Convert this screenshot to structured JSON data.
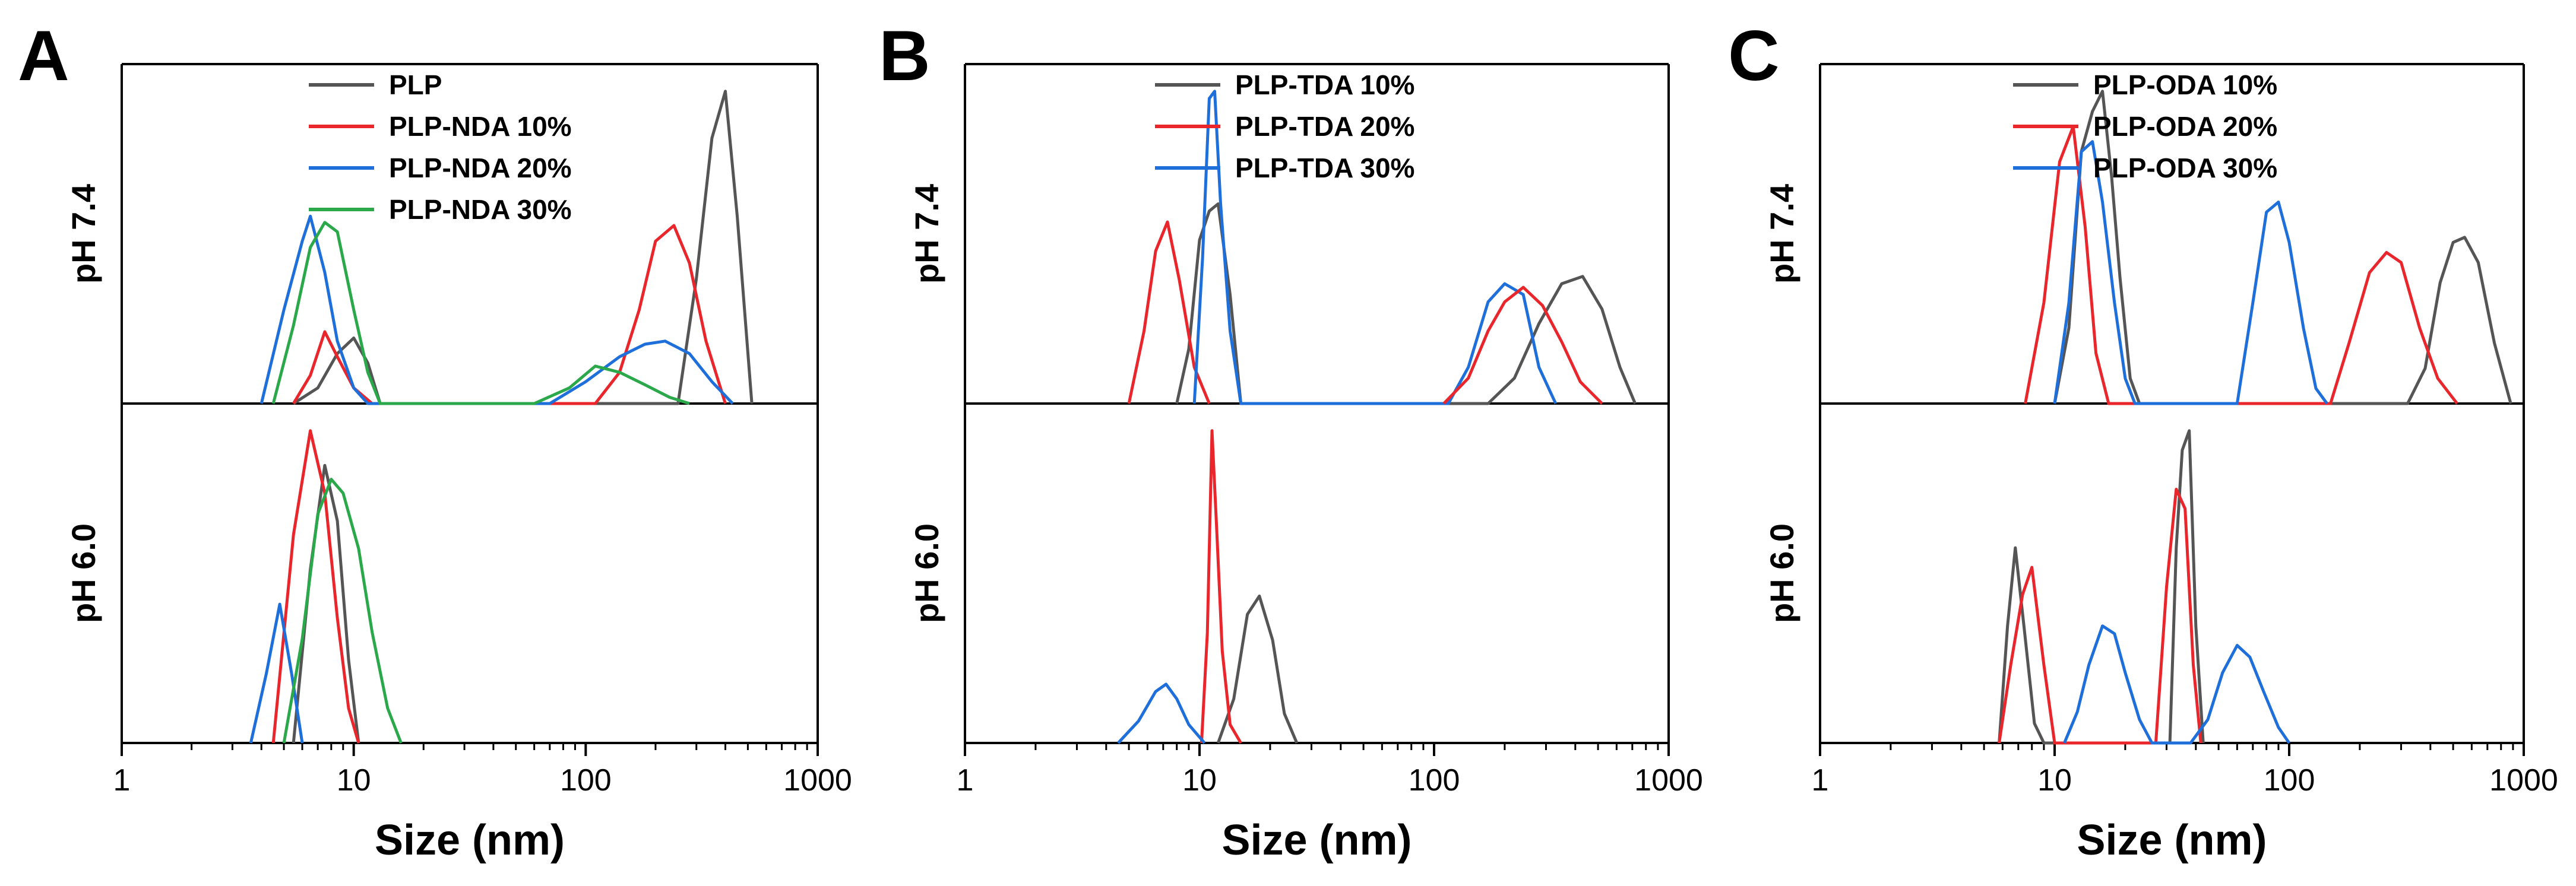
{
  "chart_data": [
    {
      "type": "line",
      "panel": "A",
      "xlabel": "Size (nm)",
      "xscale": "log",
      "xlim": [
        1,
        1000
      ],
      "xticks": [
        "1",
        "10",
        "100",
        "1000"
      ],
      "legend_position": "top-center",
      "rows": [
        {
          "label": "pH 7.4",
          "series": [
            {
              "name": "PLP",
              "color": "#555555",
              "x": [
                5.5,
                7,
                8.5,
                10,
                11.5,
                13,
                250,
                300,
                350,
                400,
                450,
                520
              ],
              "y": [
                0,
                0.05,
                0.16,
                0.21,
                0.13,
                0,
                0,
                0.4,
                0.85,
                1.0,
                0.6,
                0
              ]
            },
            {
              "name": "PLP-NDA 10%",
              "color": "#e8262b",
              "x": [
                5.5,
                6.5,
                7.5,
                8.5,
                10,
                12,
                110,
                140,
                170,
                200,
                240,
                280,
                330,
                400
              ],
              "y": [
                0,
                0.09,
                0.23,
                0.15,
                0.05,
                0,
                0,
                0.1,
                0.3,
                0.52,
                0.57,
                0.45,
                0.2,
                0
              ]
            },
            {
              "name": "PLP-NDA 20%",
              "color": "#1f6fdb",
              "x": [
                4,
                5,
                6,
                6.5,
                7.5,
                8.5,
                10,
                11.5,
                70,
                100,
                140,
                180,
                220,
                280,
                350,
                430
              ],
              "y": [
                0,
                0.3,
                0.52,
                0.6,
                0.42,
                0.2,
                0.05,
                0,
                0,
                0.07,
                0.15,
                0.19,
                0.2,
                0.16,
                0.07,
                0
              ]
            },
            {
              "name": "PLP-NDA 30%",
              "color": "#2aa84a",
              "x": [
                4.5,
                5.5,
                6.5,
                7.5,
                8.5,
                10,
                11.5,
                13,
                60,
                85,
                110,
                140,
                180,
                230,
                280
              ],
              "y": [
                0,
                0.25,
                0.5,
                0.58,
                0.55,
                0.3,
                0.1,
                0,
                0,
                0.05,
                0.12,
                0.1,
                0.06,
                0.02,
                0
              ]
            }
          ]
        },
        {
          "label": "pH 6.0",
          "series": [
            {
              "name": "PLP",
              "color": "#555555",
              "x": [
                5.5,
                6.5,
                7.5,
                8.5,
                9.5,
                10.5
              ],
              "y": [
                0,
                0.25,
                0.4,
                0.32,
                0.12,
                0
              ]
            },
            {
              "name": "PLP-NDA 10%",
              "color": "#e8262b",
              "x": [
                4.5,
                5.5,
                6.5,
                7.5,
                8.5,
                9.5,
                10.5
              ],
              "y": [
                0,
                0.3,
                0.45,
                0.36,
                0.18,
                0.05,
                0
              ]
            },
            {
              "name": "PLP-NDA 20%",
              "color": "#1f6fdb",
              "x": [
                3.6,
                4.2,
                4.8,
                5.4,
                6
              ],
              "y": [
                0,
                0.1,
                0.2,
                0.1,
                0
              ]
            },
            {
              "name": "PLP-NDA 30%",
              "color": "#2aa84a",
              "x": [
                5,
                6,
                7,
                8,
                9,
                10.5,
                12,
                14,
                16
              ],
              "y": [
                0,
                0.15,
                0.33,
                0.38,
                0.36,
                0.28,
                0.16,
                0.05,
                0
              ]
            }
          ]
        }
      ]
    },
    {
      "type": "line",
      "panel": "B",
      "xlabel": "Size (nm)",
      "xscale": "log",
      "xlim": [
        1,
        1000
      ],
      "xticks": [
        "1",
        "10",
        "100",
        "1000"
      ],
      "legend_position": "top-center",
      "rows": [
        {
          "label": "pH 7.4",
          "series": [
            {
              "name": "PLP-TDA 10%",
              "color": "#555555",
              "x": [
                8,
                9,
                10,
                11,
                12,
                13.5,
                15,
                170,
                220,
                280,
                350,
                430,
                520,
                620,
                720
              ],
              "y": [
                0,
                0.15,
                0.45,
                0.53,
                0.55,
                0.3,
                0,
                0,
                0.07,
                0.22,
                0.33,
                0.35,
                0.26,
                0.1,
                0
              ]
            },
            {
              "name": "PLP-TDA 20%",
              "color": "#e8262b",
              "x": [
                5,
                5.8,
                6.5,
                7.3,
                8.2,
                9.5,
                11
              ],
              "y": [
                0,
                0.2,
                0.42,
                0.5,
                0.34,
                0.1,
                0
              ]
            },
            {
              "name": "PLP-TDA 30%",
              "color": "#1f6fdb",
              "x": [
                9.5,
                10.3,
                11,
                11.6,
                12.3,
                13.5,
                15,
                115,
                140,
                170,
                200,
                240,
                280,
                330
              ],
              "y": [
                0,
                0.4,
                0.84,
                0.86,
                0.55,
                0.2,
                0,
                0,
                0.1,
                0.28,
                0.33,
                0.3,
                0.1,
                0
              ]
            },
            {
              "name": "PLP-TDA 20%",
              "color": "#e8262b",
              "x": [
                110,
                140,
                170,
                200,
                240,
                290,
                350,
                420,
                520
              ],
              "y": [
                0,
                0.07,
                0.2,
                0.28,
                0.32,
                0.27,
                0.17,
                0.06,
                0
              ]
            }
          ]
        },
        {
          "label": "pH 6.0",
          "series": [
            {
              "name": "PLP-TDA 10%",
              "color": "#555555",
              "x": [
                12,
                14,
                16,
                18,
                20.5,
                23,
                26
              ],
              "y": [
                0,
                0.12,
                0.35,
                0.4,
                0.28,
                0.08,
                0
              ]
            },
            {
              "name": "PLP-TDA 20%",
              "color": "#e8262b",
              "x": [
                10.2,
                10.8,
                11.3,
                11.8,
                12.5,
                13.5,
                15
              ],
              "y": [
                0,
                0.3,
                0.85,
                0.6,
                0.25,
                0.05,
                0
              ]
            },
            {
              "name": "PLP-TDA 30%",
              "color": "#1f6fdb",
              "x": [
                4.5,
                5.5,
                6.5,
                7.2,
                8,
                9,
                10.5
              ],
              "y": [
                0,
                0.06,
                0.14,
                0.16,
                0.12,
                0.05,
                0
              ]
            }
          ]
        }
      ]
    },
    {
      "type": "line",
      "panel": "C",
      "xlabel": "Size (nm)",
      "xscale": "log",
      "xlim": [
        1,
        1000
      ],
      "xticks": [
        "1",
        "10",
        "100",
        "1000"
      ],
      "legend_position": "top-center",
      "rows": [
        {
          "label": "pH 7.4",
          "series": [
            {
              "name": "PLP-ODA 10%",
              "color": "#555555",
              "x": [
                10,
                11.5,
                13,
                14.5,
                16,
                17.5,
                19,
                21,
                23,
                320,
                380,
                440,
                500,
                560,
                640,
                750,
                880
              ],
              "y": [
                0,
                0.15,
                0.5,
                0.58,
                0.62,
                0.45,
                0.25,
                0.05,
                0,
                0,
                0.07,
                0.24,
                0.32,
                0.33,
                0.28,
                0.12,
                0
              ]
            },
            {
              "name": "PLP-ODA 20%",
              "color": "#e8262b",
              "x": [
                7.5,
                9,
                10.5,
                12,
                13.5,
                15,
                17,
                150,
                180,
                220,
                260,
                300,
                360,
                430,
                520
              ],
              "y": [
                0,
                0.2,
                0.48,
                0.55,
                0.35,
                0.1,
                0,
                0,
                0.12,
                0.26,
                0.3,
                0.28,
                0.15,
                0.05,
                0
              ]
            },
            {
              "name": "PLP-ODA 30%",
              "color": "#1f6fdb",
              "x": [
                10,
                11.5,
                13,
                14.5,
                16,
                18,
                20,
                22,
                60,
                70,
                80,
                90,
                100,
                115,
                130,
                145
              ],
              "y": [
                0,
                0.2,
                0.5,
                0.52,
                0.4,
                0.2,
                0.05,
                0,
                0,
                0.2,
                0.38,
                0.4,
                0.32,
                0.15,
                0.03,
                0
              ]
            }
          ]
        },
        {
          "label": "pH 6.0",
          "series": [
            {
              "name": "PLP-ODA 10%",
              "color": "#555555",
              "x": [
                5.8,
                6.3,
                6.8,
                7.4,
                8.2,
                9,
                10,
                31,
                33,
                35,
                37.5,
                40,
                43
              ],
              "y": [
                0,
                0.3,
                0.5,
                0.3,
                0.05,
                0,
                0,
                0,
                0.5,
                0.75,
                0.8,
                0.3,
                0
              ]
            },
            {
              "name": "PLP-ODA 20%",
              "color": "#e8262b",
              "x": [
                5.8,
                6.5,
                7.3,
                8,
                9,
                10,
                27,
                30,
                33,
                36,
                39,
                42
              ],
              "y": [
                0,
                0.2,
                0.38,
                0.45,
                0.2,
                0,
                0,
                0.4,
                0.65,
                0.6,
                0.2,
                0
              ]
            },
            {
              "name": "PLP-ODA 30%",
              "color": "#1f6fdb",
              "x": [
                11,
                12.5,
                14,
                16,
                18,
                20,
                23,
                26,
                38,
                45,
                52,
                60,
                68,
                78,
                90,
                100
              ],
              "y": [
                0,
                0.08,
                0.2,
                0.3,
                0.28,
                0.18,
                0.06,
                0,
                0,
                0.06,
                0.18,
                0.25,
                0.22,
                0.13,
                0.04,
                0
              ]
            }
          ]
        }
      ]
    }
  ]
}
